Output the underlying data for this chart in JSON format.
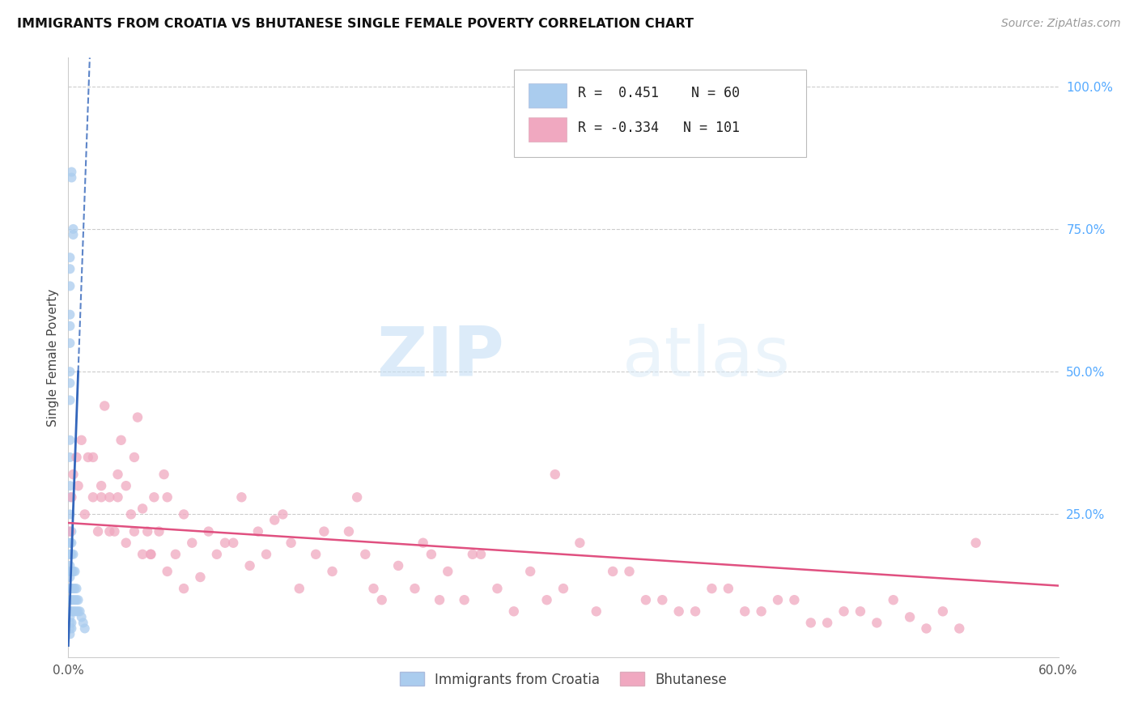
{
  "title": "IMMIGRANTS FROM CROATIA VS BHUTANESE SINGLE FEMALE POVERTY CORRELATION CHART",
  "source": "Source: ZipAtlas.com",
  "ylabel": "Single Female Poverty",
  "legend_labels": [
    "Immigrants from Croatia",
    "Bhutanese"
  ],
  "r_croatia": 0.451,
  "n_croatia": 60,
  "r_bhutanese": -0.334,
  "n_bhutanese": 101,
  "color_croatia": "#aaccee",
  "color_bhutanese": "#f0a8c0",
  "line_color_croatia": "#3366bb",
  "line_color_bhutanese": "#e05080",
  "watermark_zip": "ZIP",
  "watermark_atlas": "atlas",
  "xlim": [
    0.0,
    0.6
  ],
  "ylim": [
    0.0,
    1.05
  ],
  "croatia_points_x": [
    0.002,
    0.002,
    0.003,
    0.003,
    0.001,
    0.001,
    0.001,
    0.001,
    0.001,
    0.001,
    0.001,
    0.001,
    0.001,
    0.001,
    0.001,
    0.001,
    0.001,
    0.001,
    0.001,
    0.001,
    0.001,
    0.001,
    0.001,
    0.001,
    0.001,
    0.001,
    0.001,
    0.001,
    0.001,
    0.001,
    0.001,
    0.001,
    0.001,
    0.002,
    0.002,
    0.002,
    0.002,
    0.002,
    0.002,
    0.002,
    0.002,
    0.002,
    0.003,
    0.003,
    0.003,
    0.003,
    0.003,
    0.004,
    0.004,
    0.004,
    0.004,
    0.005,
    0.005,
    0.005,
    0.006,
    0.006,
    0.007,
    0.008,
    0.009,
    0.01
  ],
  "croatia_points_y": [
    0.84,
    0.85,
    0.75,
    0.74,
    0.7,
    0.68,
    0.65,
    0.6,
    0.58,
    0.55,
    0.5,
    0.48,
    0.45,
    0.38,
    0.35,
    0.3,
    0.28,
    0.25,
    0.22,
    0.2,
    0.18,
    0.16,
    0.14,
    0.12,
    0.1,
    0.08,
    0.07,
    0.06,
    0.05,
    0.04,
    0.2,
    0.18,
    0.15,
    0.22,
    0.2,
    0.18,
    0.15,
    0.12,
    0.1,
    0.08,
    0.06,
    0.05,
    0.18,
    0.15,
    0.12,
    0.1,
    0.08,
    0.15,
    0.12,
    0.1,
    0.08,
    0.12,
    0.1,
    0.08,
    0.1,
    0.08,
    0.08,
    0.07,
    0.06,
    0.05
  ],
  "bhutanese_points_x": [
    0.001,
    0.002,
    0.003,
    0.005,
    0.006,
    0.008,
    0.01,
    0.012,
    0.015,
    0.018,
    0.02,
    0.022,
    0.025,
    0.028,
    0.03,
    0.032,
    0.035,
    0.038,
    0.04,
    0.042,
    0.045,
    0.048,
    0.05,
    0.052,
    0.055,
    0.058,
    0.06,
    0.065,
    0.07,
    0.075,
    0.08,
    0.085,
    0.09,
    0.095,
    0.1,
    0.105,
    0.11,
    0.115,
    0.12,
    0.125,
    0.13,
    0.135,
    0.14,
    0.15,
    0.155,
    0.16,
    0.17,
    0.175,
    0.18,
    0.185,
    0.19,
    0.2,
    0.21,
    0.215,
    0.22,
    0.225,
    0.23,
    0.24,
    0.245,
    0.25,
    0.26,
    0.27,
    0.28,
    0.29,
    0.295,
    0.3,
    0.31,
    0.32,
    0.33,
    0.34,
    0.35,
    0.36,
    0.37,
    0.38,
    0.39,
    0.4,
    0.41,
    0.42,
    0.43,
    0.44,
    0.45,
    0.46,
    0.47,
    0.48,
    0.49,
    0.5,
    0.51,
    0.52,
    0.53,
    0.54,
    0.015,
    0.02,
    0.025,
    0.03,
    0.035,
    0.04,
    0.045,
    0.05,
    0.06,
    0.07,
    0.55
  ],
  "bhutanese_points_y": [
    0.22,
    0.28,
    0.32,
    0.35,
    0.3,
    0.38,
    0.25,
    0.35,
    0.28,
    0.22,
    0.3,
    0.44,
    0.28,
    0.22,
    0.32,
    0.38,
    0.3,
    0.25,
    0.35,
    0.42,
    0.26,
    0.22,
    0.18,
    0.28,
    0.22,
    0.32,
    0.28,
    0.18,
    0.25,
    0.2,
    0.14,
    0.22,
    0.18,
    0.2,
    0.2,
    0.28,
    0.16,
    0.22,
    0.18,
    0.24,
    0.25,
    0.2,
    0.12,
    0.18,
    0.22,
    0.15,
    0.22,
    0.28,
    0.18,
    0.12,
    0.1,
    0.16,
    0.12,
    0.2,
    0.18,
    0.1,
    0.15,
    0.1,
    0.18,
    0.18,
    0.12,
    0.08,
    0.15,
    0.1,
    0.32,
    0.12,
    0.2,
    0.08,
    0.15,
    0.15,
    0.1,
    0.1,
    0.08,
    0.08,
    0.12,
    0.12,
    0.08,
    0.08,
    0.1,
    0.1,
    0.06,
    0.06,
    0.08,
    0.08,
    0.06,
    0.1,
    0.07,
    0.05,
    0.08,
    0.05,
    0.35,
    0.28,
    0.22,
    0.28,
    0.2,
    0.22,
    0.18,
    0.18,
    0.15,
    0.12,
    0.2
  ],
  "trend_croatia_x0": 0.0,
  "trend_croatia_y0": 0.02,
  "trend_croatia_x1": 0.006,
  "trend_croatia_y1": 0.5,
  "trend_croatia_dash_x1": 0.013,
  "trend_croatia_dash_y1": 1.05,
  "trend_bhutanese_x0": 0.0,
  "trend_bhutanese_y0": 0.235,
  "trend_bhutanese_x1": 0.6,
  "trend_bhutanese_y1": 0.125
}
